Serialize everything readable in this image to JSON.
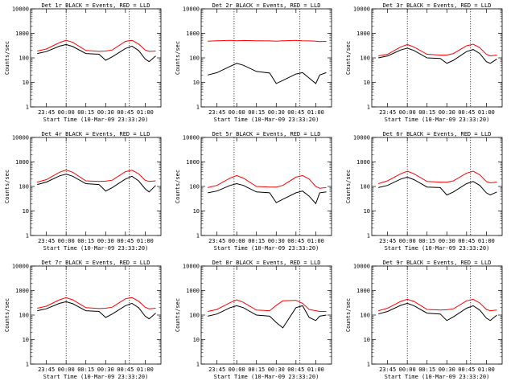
{
  "chart_data": [
    {
      "type": "line",
      "title": "Det 1r BLACK = Events, RED = LLD",
      "xlabel": "Start Time (10-Mar-09 23:33:20)",
      "ylabel": "Counts/sec",
      "yscale": "log",
      "ylim": [
        1,
        10000
      ],
      "x_ticks": [
        "23:45",
        "00:00",
        "00:15",
        "00:30",
        "00:45",
        "01:00"
      ],
      "y_ticks": [
        "1",
        "10",
        "100",
        "1000",
        "10000"
      ],
      "x": [
        "23:38",
        "23:45",
        "23:55",
        "00:00",
        "00:05",
        "00:15",
        "00:25",
        "00:30",
        "00:35",
        "00:45",
        "00:50",
        "00:55",
        "01:00",
        "01:03",
        "01:08"
      ],
      "series": [
        {
          "color": "#ff0000",
          "values": [
            190,
            230,
            420,
            520,
            430,
            200,
            185,
            190,
            210,
            470,
            520,
            370,
            210,
            185,
            190
          ]
        },
        {
          "color": "#000000",
          "values": [
            150,
            180,
            300,
            350,
            290,
            150,
            140,
            80,
            110,
            240,
            300,
            200,
            90,
            70,
            120
          ]
        }
      ],
      "markers": [
        "00:00",
        "00:48"
      ]
    },
    {
      "type": "line",
      "title": "Det 2r BLACK = Events, RED = LLD",
      "xlabel": "Start Time (10-Mar-09 23:33:20)",
      "ylabel": "Counts/sec",
      "yscale": "log",
      "ylim": [
        1,
        10000
      ],
      "x_ticks": [
        "23:45",
        "00:00",
        "00:15",
        "00:30",
        "00:45",
        "01:00"
      ],
      "y_ticks": [
        "1",
        "10",
        "100",
        "1000",
        "10000"
      ],
      "x": [
        "23:38",
        "23:45",
        "23:55",
        "00:00",
        "00:05",
        "00:15",
        "00:25",
        "00:30",
        "00:35",
        "00:45",
        "00:50",
        "00:55",
        "01:00",
        "01:03",
        "01:08"
      ],
      "series": [
        {
          "color": "#ff0000",
          "values": [
            480,
            500,
            520,
            500,
            510,
            500,
            490,
            480,
            500,
            520,
            500,
            490,
            480,
            460,
            470
          ]
        },
        {
          "color": "#000000",
          "values": [
            20,
            25,
            45,
            60,
            50,
            28,
            24,
            9,
            12,
            22,
            25,
            15,
            9,
            20,
            25
          ]
        }
      ],
      "markers": [
        "23:58",
        "00:48"
      ]
    },
    {
      "type": "line",
      "title": "Det 3r BLACK = Events, RED = LLD",
      "xlabel": "Start Time (10-Mar-09 23:33:20)",
      "ylabel": "Counts/sec",
      "yscale": "log",
      "ylim": [
        1,
        10000
      ],
      "x_ticks": [
        "23:45",
        "00:00",
        "00:15",
        "00:30",
        "00:45",
        "01:00"
      ],
      "y_ticks": [
        "1",
        "10",
        "100",
        "1000",
        "10000"
      ],
      "x": [
        "23:38",
        "23:45",
        "23:55",
        "00:00",
        "00:05",
        "00:15",
        "00:25",
        "00:30",
        "00:35",
        "00:45",
        "00:50",
        "00:55",
        "01:00",
        "01:03",
        "01:08"
      ],
      "series": [
        {
          "color": "#ff0000",
          "values": [
            120,
            140,
            280,
            350,
            280,
            140,
            130,
            130,
            150,
            310,
            360,
            260,
            140,
            120,
            130
          ]
        },
        {
          "color": "#000000",
          "values": [
            100,
            120,
            210,
            250,
            200,
            100,
            95,
            60,
            80,
            180,
            220,
            150,
            70,
            60,
            90
          ]
        }
      ],
      "markers": [
        "00:00",
        "00:48"
      ]
    },
    {
      "type": "line",
      "title": "Det 4r BLACK = Events, RED = LLD",
      "xlabel": "Start Time (10-Mar-09 23:33:20)",
      "ylabel": "Counts/sec",
      "yscale": "log",
      "ylim": [
        1,
        10000
      ],
      "x_ticks": [
        "23:45",
        "00:00",
        "00:15",
        "00:30",
        "00:45",
        "01:00"
      ],
      "y_ticks": [
        "1",
        "10",
        "100",
        "1000",
        "10000"
      ],
      "x": [
        "23:38",
        "23:45",
        "23:55",
        "00:00",
        "00:05",
        "00:15",
        "00:25",
        "00:30",
        "00:35",
        "00:45",
        "00:50",
        "00:55",
        "01:00",
        "01:03",
        "01:08"
      ],
      "series": [
        {
          "color": "#ff0000",
          "values": [
            150,
            190,
            380,
            470,
            380,
            170,
            160,
            165,
            180,
            400,
            460,
            330,
            180,
            160,
            170
          ]
        },
        {
          "color": "#000000",
          "values": [
            120,
            150,
            270,
            320,
            260,
            130,
            120,
            65,
            90,
            200,
            260,
            170,
            80,
            60,
            110
          ]
        }
      ],
      "markers": [
        "00:00",
        "00:48"
      ]
    },
    {
      "type": "line",
      "title": "Det 5r BLACK = Events, RED = LLD",
      "xlabel": "Start Time (10-Mar-09 23:33:20)",
      "ylabel": "Counts/sec",
      "yscale": "log",
      "ylim": [
        1,
        10000
      ],
      "x_ticks": [
        "23:45",
        "00:00",
        "00:15",
        "00:30",
        "00:45",
        "01:00"
      ],
      "y_ticks": [
        "1",
        "10",
        "100",
        "1000",
        "10000"
      ],
      "x": [
        "23:38",
        "23:45",
        "23:55",
        "00:00",
        "00:05",
        "00:15",
        "00:25",
        "00:30",
        "00:35",
        "00:45",
        "00:50",
        "00:55",
        "01:00",
        "01:03",
        "01:08"
      ],
      "series": [
        {
          "color": "#ff0000",
          "values": [
            90,
            110,
            220,
            280,
            220,
            100,
            95,
            95,
            110,
            240,
            280,
            200,
            100,
            85,
            90
          ]
        },
        {
          "color": "#000000",
          "values": [
            55,
            65,
            110,
            130,
            110,
            60,
            55,
            22,
            30,
            55,
            65,
            40,
            20,
            55,
            60
          ]
        }
      ],
      "markers": [
        "23:58",
        "00:48"
      ]
    },
    {
      "type": "line",
      "title": "Det 6r BLACK = Events, RED = LLD",
      "xlabel": "Start Time (10-Mar-09 23:33:20)",
      "ylabel": "Counts/sec",
      "yscale": "log",
      "ylim": [
        1,
        10000
      ],
      "x_ticks": [
        "23:45",
        "00:00",
        "00:15",
        "00:30",
        "00:45",
        "01:00"
      ],
      "y_ticks": [
        "1",
        "10",
        "100",
        "1000",
        "10000"
      ],
      "x": [
        "23:38",
        "23:45",
        "23:55",
        "00:00",
        "00:05",
        "00:15",
        "00:25",
        "00:30",
        "00:35",
        "00:45",
        "00:50",
        "00:55",
        "01:00",
        "01:03",
        "01:08"
      ],
      "series": [
        {
          "color": "#ff0000",
          "values": [
            130,
            170,
            330,
            420,
            330,
            160,
            150,
            150,
            170,
            350,
            420,
            300,
            160,
            140,
            150
          ]
        },
        {
          "color": "#000000",
          "values": [
            90,
            110,
            200,
            240,
            190,
            95,
            90,
            45,
            60,
            130,
            160,
            110,
            55,
            45,
            60
          ]
        }
      ],
      "markers": [
        "00:00",
        "00:48"
      ]
    },
    {
      "type": "line",
      "title": "Det 7r BLACK = Events, RED = LLD",
      "xlabel": "Start Time (10-Mar-09 23:33:20)",
      "ylabel": "Counts/sec",
      "yscale": "log",
      "ylim": [
        1,
        10000
      ],
      "x_ticks": [
        "23:45",
        "00:00",
        "00:15",
        "00:30",
        "00:45",
        "01:00"
      ],
      "y_ticks": [
        "1",
        "10",
        "100",
        "1000",
        "10000"
      ],
      "x": [
        "23:38",
        "23:45",
        "23:55",
        "00:00",
        "00:05",
        "00:15",
        "00:25",
        "00:30",
        "00:35",
        "00:45",
        "00:50",
        "00:55",
        "01:00",
        "01:03",
        "01:08"
      ],
      "series": [
        {
          "color": "#ff0000",
          "values": [
            190,
            230,
            420,
            510,
            420,
            200,
            185,
            190,
            210,
            460,
            520,
            370,
            210,
            180,
            190
          ]
        },
        {
          "color": "#000000",
          "values": [
            150,
            180,
            300,
            350,
            290,
            150,
            140,
            80,
            110,
            240,
            300,
            200,
            90,
            70,
            120
          ]
        }
      ],
      "markers": [
        "00:00",
        "00:48"
      ]
    },
    {
      "type": "line",
      "title": "Det 8r BLACK = Events, RED = LLD",
      "xlabel": "Start Time (10-Mar-09 23:33:20)",
      "ylabel": "Counts/sec",
      "yscale": "log",
      "ylim": [
        1,
        10000
      ],
      "x_ticks": [
        "23:45",
        "00:00",
        "00:15",
        "00:30",
        "00:45",
        "01:00"
      ],
      "y_ticks": [
        "1",
        "10",
        "100",
        "1000",
        "10000"
      ],
      "x": [
        "23:38",
        "23:45",
        "23:55",
        "00:00",
        "00:05",
        "00:15",
        "00:25",
        "00:30",
        "00:35",
        "00:45",
        "00:50",
        "00:55",
        "01:00",
        "01:03",
        "01:08"
      ],
      "series": [
        {
          "color": "#ff0000",
          "values": [
            140,
            170,
            320,
            420,
            330,
            160,
            150,
            250,
            380,
            400,
            300,
            170,
            150,
            140,
            140
          ]
        },
        {
          "color": "#000000",
          "values": [
            90,
            110,
            200,
            240,
            200,
            100,
            90,
            50,
            30,
            200,
            240,
            80,
            60,
            90,
            100
          ]
        }
      ],
      "markers": [
        "23:58",
        "00:48"
      ]
    },
    {
      "type": "line",
      "title": "Det 9r BLACK = Events, RED = LLD",
      "xlabel": "Start Time (10-Mar-09 23:33:20)",
      "ylabel": "Counts/sec",
      "yscale": "log",
      "ylim": [
        1,
        10000
      ],
      "x_ticks": [
        "23:45",
        "00:00",
        "00:15",
        "00:30",
        "00:45",
        "01:00"
      ],
      "y_ticks": [
        "1",
        "10",
        "100",
        "1000",
        "10000"
      ],
      "x": [
        "23:38",
        "23:45",
        "23:55",
        "00:00",
        "00:05",
        "00:15",
        "00:25",
        "00:30",
        "00:35",
        "00:45",
        "00:50",
        "00:55",
        "01:00",
        "01:03",
        "01:08"
      ],
      "series": [
        {
          "color": "#ff0000",
          "values": [
            150,
            190,
            360,
            440,
            360,
            170,
            160,
            165,
            180,
            380,
            440,
            310,
            170,
            150,
            160
          ]
        },
        {
          "color": "#000000",
          "values": [
            110,
            140,
            250,
            300,
            240,
            120,
            110,
            60,
            85,
            190,
            240,
            160,
            75,
            60,
            100
          ]
        }
      ],
      "markers": [
        "00:00",
        "00:48"
      ]
    }
  ]
}
